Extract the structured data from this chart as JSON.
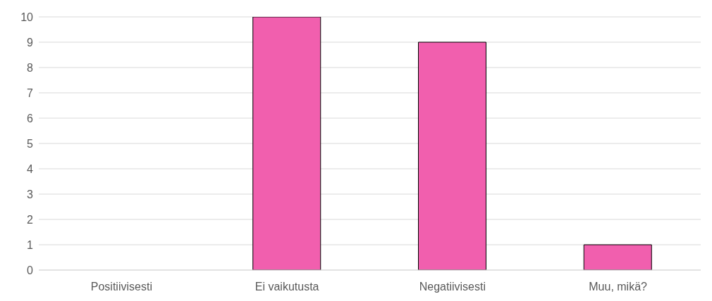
{
  "chart_data": {
    "type": "bar",
    "categories": [
      "Positiivisesti",
      "Ei vaikutusta",
      "Negatiivisesti",
      "Muu, mikä?"
    ],
    "values": [
      0,
      10,
      9,
      1
    ],
    "color": "#f15fae",
    "ylim": [
      0,
      10
    ],
    "yticks": [
      0,
      1,
      2,
      3,
      4,
      5,
      6,
      7,
      8,
      9,
      10
    ],
    "grid": "y"
  }
}
